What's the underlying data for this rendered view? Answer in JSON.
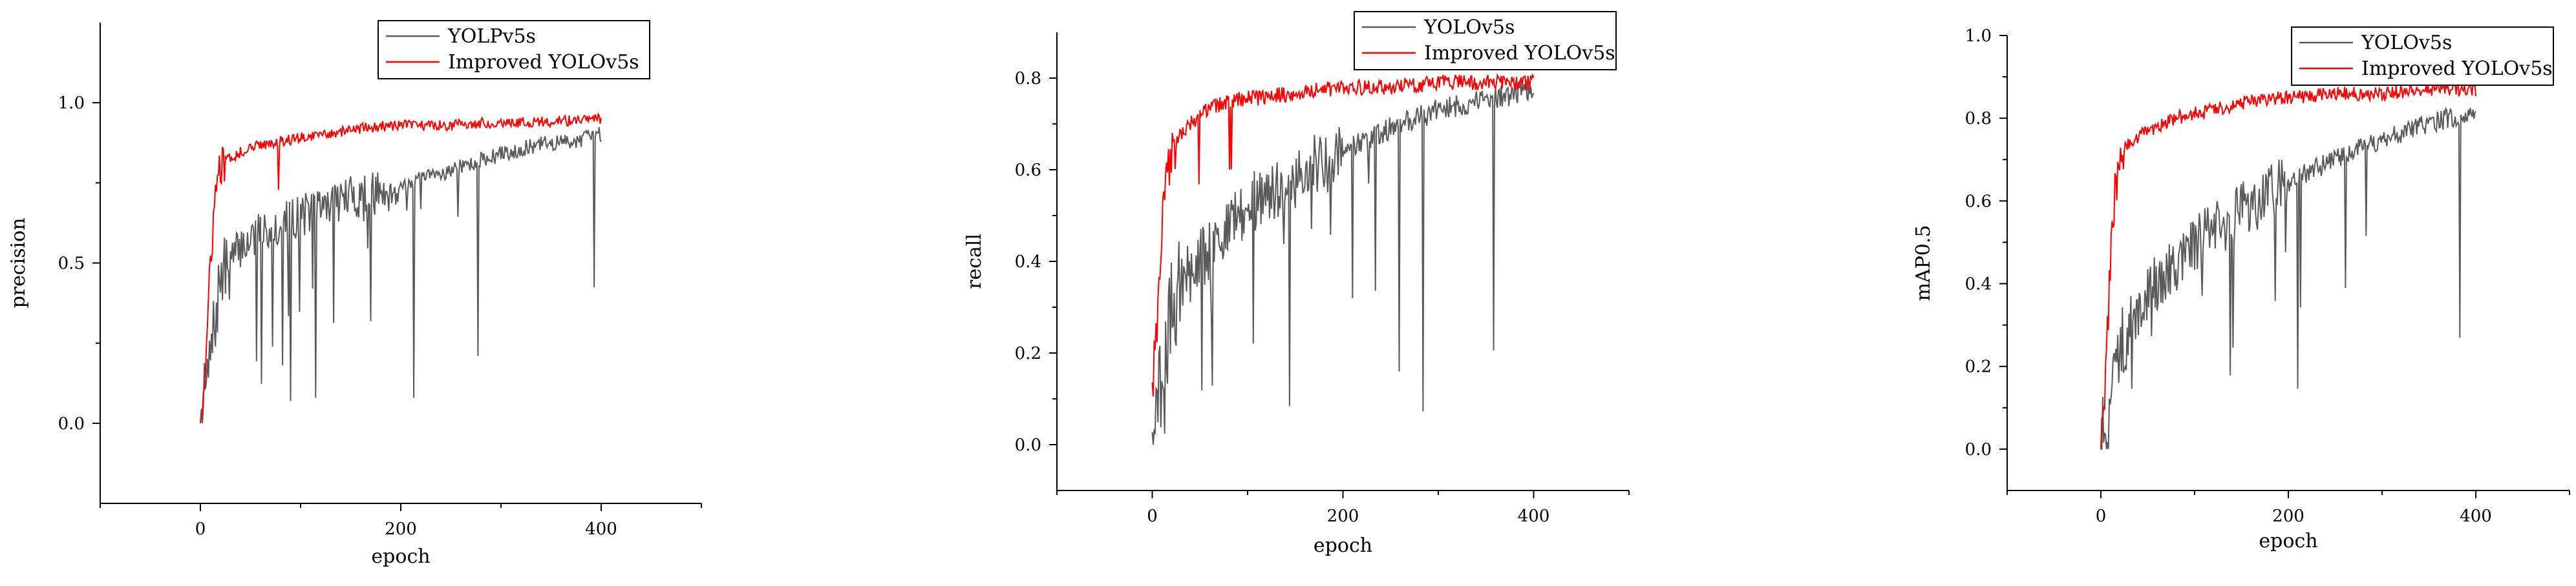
{
  "colors": {
    "baseline": "#5a5a5a",
    "improved": "#ff0000",
    "axis": "#000000"
  },
  "chart_data": [
    {
      "type": "line",
      "title": "",
      "xlabel": "epoch",
      "ylabel": "precision",
      "xlim": [
        -100,
        500
      ],
      "ylim": [
        -0.25,
        1.25
      ],
      "xticks": [
        0,
        200,
        400
      ],
      "yticks": [
        0.0,
        0.5,
        1.0
      ],
      "xtick_labels": [
        "0",
        "200",
        "400"
      ],
      "ytick_labels": [
        "0.0",
        "0.5",
        "1.0"
      ],
      "legend": "top-right",
      "series": [
        {
          "name": "YOLPv5s",
          "key": "baseline",
          "x": [
            0,
            10,
            20,
            30,
            40,
            60,
            80,
            100,
            140,
            180,
            220,
            260,
            300,
            340,
            370,
            400
          ],
          "y": [
            0.0,
            0.2,
            0.45,
            0.5,
            0.55,
            0.6,
            0.62,
            0.65,
            0.7,
            0.72,
            0.76,
            0.8,
            0.84,
            0.87,
            0.88,
            0.9
          ]
        },
        {
          "name": "Improved YOLOv5s",
          "key": "improved",
          "x": [
            0,
            5,
            10,
            15,
            20,
            30,
            50,
            80,
            120,
            160,
            200,
            250,
            300,
            350,
            400
          ],
          "y": [
            0.0,
            0.15,
            0.5,
            0.72,
            0.8,
            0.83,
            0.86,
            0.88,
            0.9,
            0.92,
            0.93,
            0.93,
            0.94,
            0.94,
            0.95
          ]
        }
      ]
    },
    {
      "type": "line",
      "title": "",
      "xlabel": "epoch",
      "ylabel": "recall",
      "xlim": [
        -100,
        500
      ],
      "ylim": [
        -0.1,
        0.9
      ],
      "xticks": [
        0,
        200,
        400
      ],
      "yticks": [
        0.0,
        0.2,
        0.4,
        0.6,
        0.8
      ],
      "xtick_labels": [
        "0",
        "200",
        "400"
      ],
      "ytick_labels": [
        "0.0",
        "0.2",
        "0.4",
        "0.6",
        "0.8"
      ],
      "legend": "top-right",
      "series": [
        {
          "name": "YOLOv5s",
          "key": "baseline",
          "x": [
            0,
            10,
            20,
            30,
            50,
            80,
            100,
            140,
            180,
            220,
            260,
            300,
            340,
            370,
            400
          ],
          "y": [
            0.0,
            0.15,
            0.3,
            0.35,
            0.4,
            0.48,
            0.52,
            0.57,
            0.62,
            0.66,
            0.7,
            0.73,
            0.75,
            0.76,
            0.78
          ]
        },
        {
          "name": "Improved YOLOv5s",
          "key": "improved",
          "x": [
            0,
            5,
            10,
            15,
            20,
            30,
            50,
            80,
            120,
            160,
            200,
            250,
            300,
            350,
            400
          ],
          "y": [
            0.12,
            0.25,
            0.45,
            0.58,
            0.63,
            0.68,
            0.72,
            0.75,
            0.76,
            0.77,
            0.78,
            0.78,
            0.79,
            0.79,
            0.79
          ]
        }
      ]
    },
    {
      "type": "line",
      "title": "",
      "xlabel": "epoch",
      "ylabel": "mAP0.5",
      "xlim": [
        -100,
        500
      ],
      "ylim": [
        -0.1,
        1.0
      ],
      "xticks": [
        0,
        200,
        400
      ],
      "yticks": [
        0.0,
        0.2,
        0.4,
        0.6,
        0.8,
        1.0
      ],
      "xtick_labels": [
        "0",
        "200",
        "400"
      ],
      "ytick_labels": [
        "0.0",
        "0.2",
        "0.4",
        "0.6",
        "0.8",
        "1.0"
      ],
      "legend": "top-right",
      "series": [
        {
          "name": "YOLOv5s",
          "key": "baseline",
          "x": [
            0,
            10,
            20,
            30,
            50,
            80,
            100,
            140,
            180,
            220,
            260,
            300,
            340,
            370,
            400
          ],
          "y": [
            0.0,
            0.1,
            0.25,
            0.3,
            0.38,
            0.45,
            0.5,
            0.56,
            0.62,
            0.67,
            0.71,
            0.75,
            0.78,
            0.8,
            0.82
          ]
        },
        {
          "name": "Improved YOLOv5s",
          "key": "improved",
          "x": [
            0,
            5,
            10,
            15,
            20,
            30,
            50,
            80,
            120,
            160,
            200,
            250,
            300,
            350,
            400
          ],
          "y": [
            0.0,
            0.15,
            0.45,
            0.62,
            0.7,
            0.74,
            0.77,
            0.8,
            0.82,
            0.84,
            0.85,
            0.86,
            0.86,
            0.87,
            0.87
          ]
        }
      ]
    }
  ]
}
